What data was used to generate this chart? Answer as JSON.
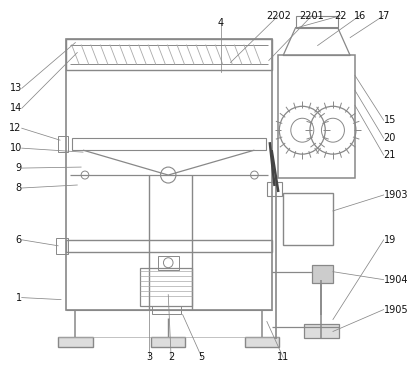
{
  "bg_color": "#ffffff",
  "lc": "#aaaaaa",
  "lc2": "#888888",
  "lc_dark": "#444444",
  "fig_width": 4.11,
  "fig_height": 3.76,
  "dpi": 100
}
